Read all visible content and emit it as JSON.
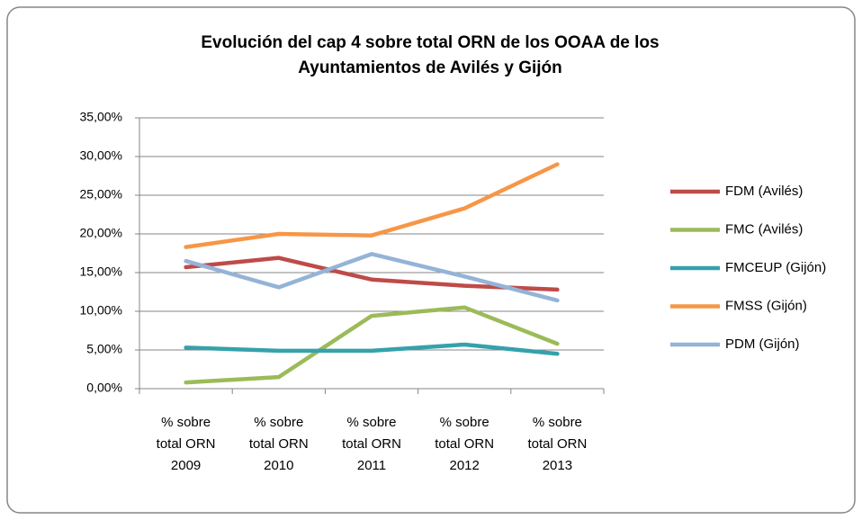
{
  "chart_data": {
    "type": "line",
    "title": "Evolución del cap 4 sobre total ORN de los OOAA de los Ayuntamientos de Avilés y Gijón",
    "categories": [
      "% sobre total ORN 2009",
      "% sobre total ORN 2010",
      "% sobre total ORN 2011",
      "% sobre total ORN 2012",
      "% sobre total ORN 2013"
    ],
    "series": [
      {
        "name": "FDM (Avilés)",
        "color": "#be4b48",
        "values": [
          15.7,
          16.9,
          14.1,
          13.3,
          12.8
        ]
      },
      {
        "name": "FMC (Avilés)",
        "color": "#9bbb59",
        "values": [
          0.8,
          1.5,
          9.4,
          10.5,
          5.8
        ]
      },
      {
        "name": "FMCEUP (Gijón)",
        "color": "#35a1ab",
        "values": [
          5.3,
          4.9,
          4.9,
          5.7,
          4.5
        ]
      },
      {
        "name": "FMSS (Gijón)",
        "color": "#f79646",
        "values": [
          18.3,
          20.0,
          19.8,
          23.3,
          29.0
        ]
      },
      {
        "name": "PDM (Gijón)",
        "color": "#95b3d7",
        "values": [
          16.5,
          13.1,
          17.4,
          14.5,
          11.4
        ]
      }
    ],
    "ylim": [
      0,
      35
    ],
    "yticks": [
      {
        "value": 0,
        "label": "0,00%"
      },
      {
        "value": 5,
        "label": "5,00%"
      },
      {
        "value": 10,
        "label": "10,00%"
      },
      {
        "value": 15,
        "label": "15,00%"
      },
      {
        "value": 20,
        "label": "20,00%"
      },
      {
        "value": 25,
        "label": "25,00%"
      },
      {
        "value": 30,
        "label": "30,00%"
      },
      {
        "value": 35,
        "label": "35,00%"
      }
    ],
    "grid": true,
    "legend": "right"
  }
}
